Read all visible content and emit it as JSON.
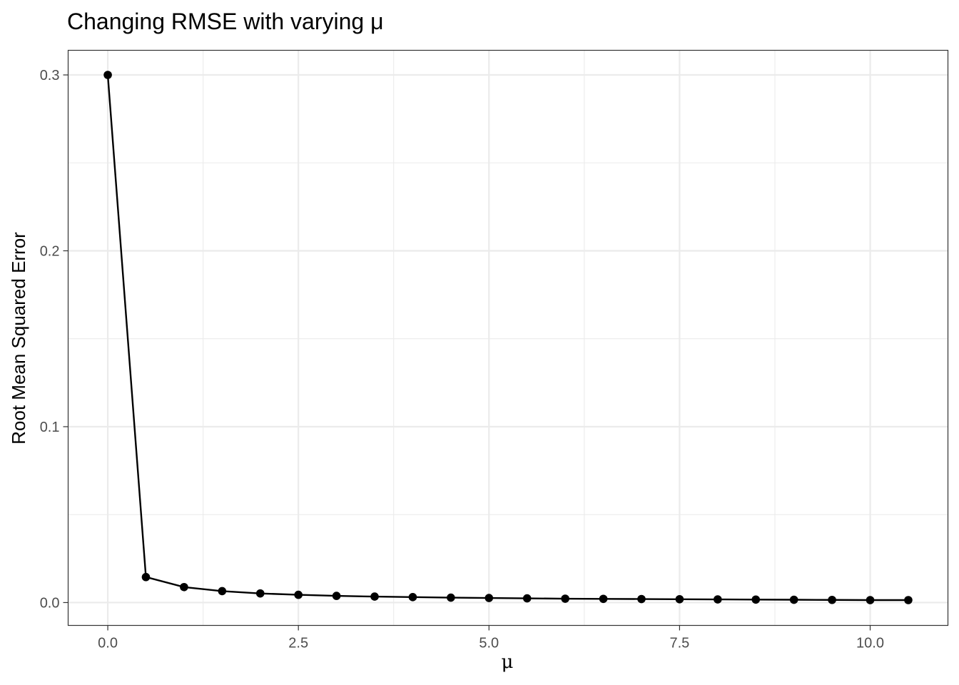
{
  "chart_data": {
    "type": "line",
    "title": "Changing RMSE with varying μ",
    "xlabel": "μ",
    "ylabel": "Root Mean Squared Error",
    "xlim": [
      -0.52,
      11.02
    ],
    "ylim": [
      -0.013,
      0.314
    ],
    "x_ticks": [
      0.0,
      2.5,
      5.0,
      7.5,
      10.0
    ],
    "x_tick_labels": [
      "0.0",
      "2.5",
      "5.0",
      "7.5",
      "10.0"
    ],
    "y_ticks": [
      0.0,
      0.1,
      0.2,
      0.3
    ],
    "y_tick_labels": [
      "0.0",
      "0.1",
      "0.2",
      "0.3"
    ],
    "grid": true,
    "legend": "none",
    "series": [
      {
        "color": "#000000",
        "x": [
          0.0,
          0.5,
          1.0,
          1.5,
          2.0,
          2.5,
          3.0,
          3.5,
          4.0,
          4.5,
          5.0,
          5.5,
          6.0,
          6.5,
          7.0,
          7.5,
          8.0,
          8.5,
          9.0,
          9.5,
          10.0,
          10.5
        ],
        "values": [
          0.3,
          0.0145,
          0.0088,
          0.0065,
          0.0052,
          0.0044,
          0.0038,
          0.0034,
          0.0031,
          0.0028,
          0.0026,
          0.0024,
          0.0022,
          0.0021,
          0.002,
          0.0019,
          0.0018,
          0.0017,
          0.0016,
          0.0015,
          0.0014,
          0.0014
        ]
      }
    ]
  }
}
